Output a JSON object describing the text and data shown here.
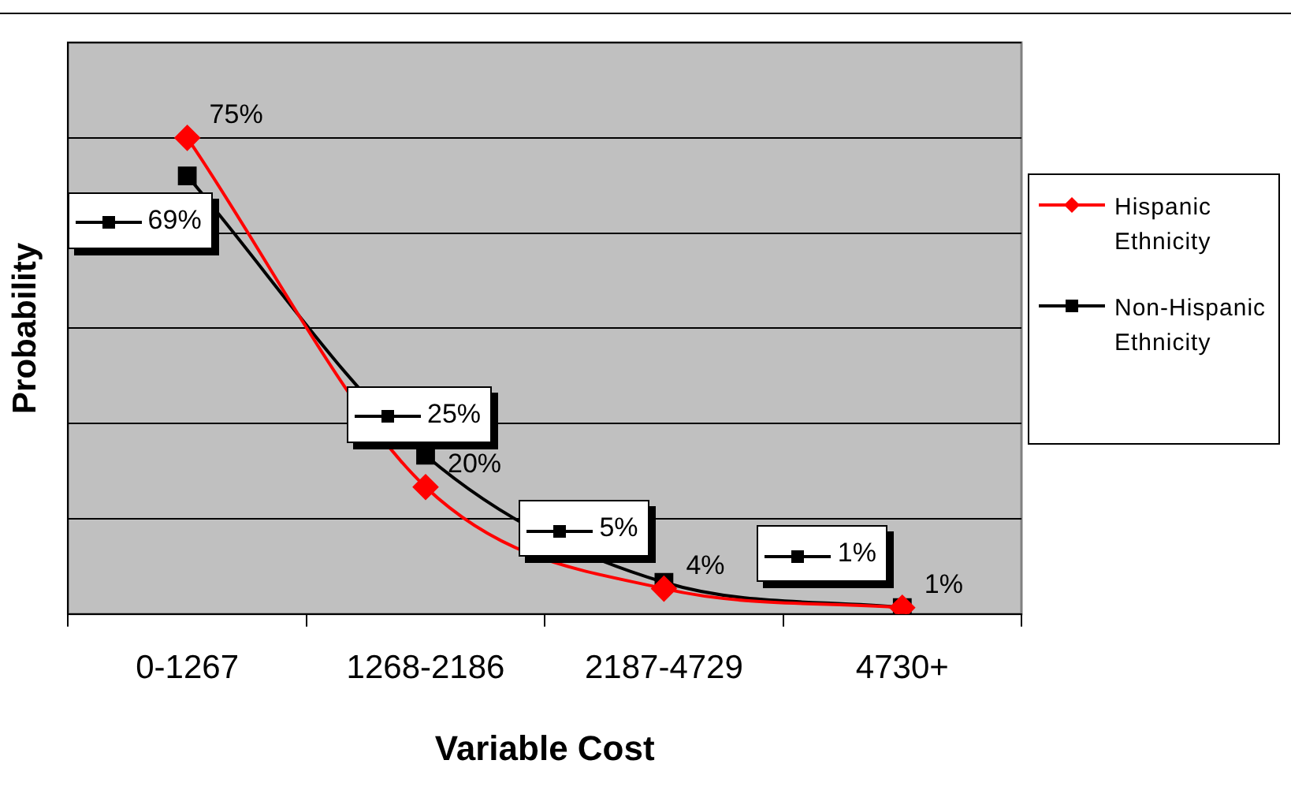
{
  "chart_data": {
    "type": "line",
    "xlabel": "Variable Cost",
    "ylabel": "Probability",
    "categories": [
      "0-1267",
      "1268-2186",
      "2187-4729",
      "4730+"
    ],
    "series": [
      {
        "name": "Hispanic Ethnicity",
        "color": "#ff0000",
        "marker": "diamond",
        "values": [
          75,
          20,
          4,
          1
        ],
        "value_labels": [
          "75%",
          "20%",
          "4%",
          "1%"
        ]
      },
      {
        "name": "Non-Hispanic Ethnicity",
        "color": "#000000",
        "marker": "square",
        "values": [
          69,
          25,
          5,
          1
        ],
        "value_labels": [
          "69%",
          "25%",
          "5%",
          "1%"
        ]
      }
    ],
    "ylim": [
      0,
      90
    ],
    "yticks": [
      {
        "value": 0,
        "label": null
      },
      {
        "value": 15,
        "label": null
      },
      {
        "value": 30,
        "label": null
      },
      {
        "value": 45,
        "label": null
      },
      {
        "value": 60,
        "label": null
      },
      {
        "value": 75,
        "label": null
      },
      {
        "value": 90,
        "label": null
      }
    ],
    "tick_labels": "x",
    "grid": "y",
    "legend": "right"
  }
}
